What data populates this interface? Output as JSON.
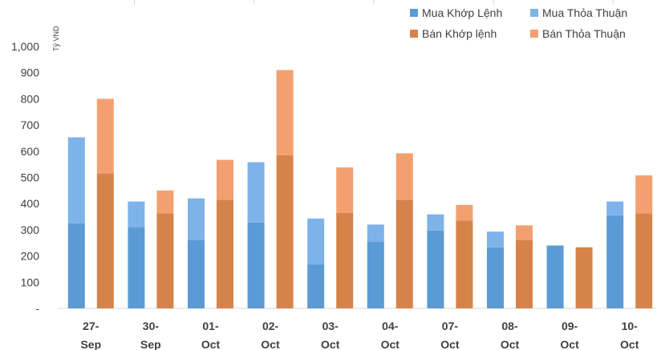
{
  "chart_data": {
    "type": "bar",
    "stacked": true,
    "unit_label": "Tỷ VND",
    "categories": [
      [
        "27-",
        "Sep"
      ],
      [
        "30-",
        "Sep"
      ],
      [
        "01-",
        "Oct"
      ],
      [
        "02-",
        "Oct"
      ],
      [
        "03-",
        "Oct"
      ],
      [
        "04-",
        "Oct"
      ],
      [
        "07-",
        "Oct"
      ],
      [
        "08-",
        "Oct"
      ],
      [
        "09-",
        "Oct"
      ],
      [
        "10-",
        "Oct"
      ]
    ],
    "ylim": [
      0,
      1000
    ],
    "yticks": [
      {
        "value": 0,
        "label": "-"
      },
      {
        "value": 100,
        "label": "100"
      },
      {
        "value": 200,
        "label": "200"
      },
      {
        "value": 300,
        "label": "300"
      },
      {
        "value": 400,
        "label": "400"
      },
      {
        "value": 500,
        "label": "500"
      },
      {
        "value": 600,
        "label": "600"
      },
      {
        "value": 700,
        "label": "700"
      },
      {
        "value": 800,
        "label": "800"
      },
      {
        "value": 900,
        "label": "900"
      },
      {
        "value": 1000,
        "label": "1,000"
      }
    ],
    "gridlines": false,
    "legend_position": "top-right",
    "groups": [
      {
        "key": "mua",
        "series": [
          {
            "name": "Mua Khớp Lệnh",
            "color": "#5B9BD5",
            "values": [
              325,
              310,
              260,
              328,
              168,
              255,
              297,
              233,
              240,
              355
            ]
          },
          {
            "name": "Mua Thỏa Thuận",
            "color": "#7DB3E8",
            "values": [
              328,
              98,
              160,
              230,
              175,
              65,
              62,
              60,
              0,
              53
            ]
          }
        ]
      },
      {
        "key": "ban",
        "series": [
          {
            "name": "Bán Khớp lệnh",
            "color": "#D6834A",
            "values": [
              515,
              363,
              415,
              585,
              365,
              415,
              335,
              260,
              233,
              363
            ]
          },
          {
            "name": "Bán Thỏa Thuận",
            "color": "#F3A070",
            "values": [
              285,
              87,
              152,
              325,
              173,
              177,
              60,
              57,
              0,
              145
            ]
          }
        ]
      }
    ]
  }
}
